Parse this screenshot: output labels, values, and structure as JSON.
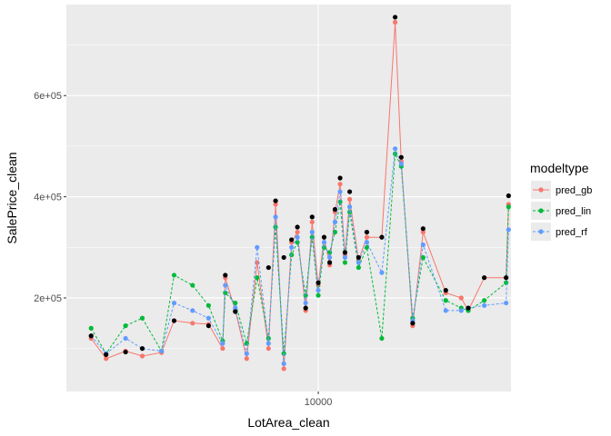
{
  "chart_data": {
    "type": "line",
    "title": "",
    "xlabel": "LotArea_clean",
    "ylabel": "SalePrice_clean",
    "x_scale": "log10",
    "x_range": [
      1220,
      50000
    ],
    "y_range": [
      15000,
      780000
    ],
    "x_ticks": [
      {
        "value": 10000,
        "label": "10000"
      }
    ],
    "y_ticks": [
      {
        "value": 200000,
        "label": "2e+05"
      },
      {
        "value": 400000,
        "label": "4e+05"
      },
      {
        "value": 600000,
        "label": "6e+05"
      }
    ],
    "grid": true,
    "legend": {
      "title": "modeltype",
      "position": "right",
      "entries": [
        {
          "name": "pred_gb",
          "color": "#F8766D",
          "linestyle": "solid"
        },
        {
          "name": "pred_lin",
          "color": "#00BA38",
          "linestyle": "dashed"
        },
        {
          "name": "pred_rf",
          "color": "#619CFF",
          "linestyle": "dashed"
        }
      ]
    },
    "actual": {
      "color": "#000000",
      "x": [
        1500,
        1700,
        2000,
        2300,
        3000,
        4000,
        4600,
        5000,
        6600,
        7000,
        7500,
        8000,
        8400,
        9000,
        9500,
        10000,
        10500,
        11000,
        11500,
        12000,
        12500,
        13000,
        14000,
        15000,
        17000,
        19000,
        20000,
        22000,
        24000,
        29000,
        35000,
        40000,
        48000,
        49000
      ],
      "y": [
        125000,
        88000,
        93000,
        100000,
        155000,
        145000,
        245000,
        173000,
        260000,
        392000,
        280000,
        315000,
        340000,
        180000,
        360000,
        230000,
        320000,
        270000,
        375000,
        437000,
        290000,
        410000,
        280000,
        330000,
        320000,
        755000,
        478000,
        150000,
        337000,
        215000,
        180000,
        240000,
        240000,
        402000
      ]
    },
    "series": [
      {
        "name": "pred_gb",
        "x": [
          1500,
          1700,
          2000,
          2300,
          2700,
          3000,
          3500,
          4000,
          4500,
          4600,
          5000,
          5500,
          6000,
          6600,
          7000,
          7500,
          8000,
          8400,
          9000,
          9500,
          10000,
          10500,
          11000,
          11500,
          12000,
          12500,
          13000,
          14000,
          15000,
          17000,
          19000,
          20000,
          22000,
          24000,
          29000,
          33000,
          35000,
          40000,
          48000,
          49000
        ],
        "y": [
          120000,
          80000,
          95000,
          85000,
          92000,
          155000,
          150000,
          148000,
          100000,
          240000,
          175000,
          80000,
          270000,
          100000,
          385000,
          60000,
          310000,
          330000,
          175000,
          350000,
          225000,
          320000,
          265000,
          370000,
          425000,
          285000,
          395000,
          275000,
          320000,
          320000,
          745000,
          470000,
          145000,
          330000,
          210000,
          200000,
          175000,
          240000,
          240000,
          385000
        ]
      },
      {
        "name": "pred_lin",
        "x": [
          1500,
          1700,
          2000,
          2300,
          2700,
          3000,
          3500,
          4000,
          4500,
          4600,
          5000,
          5500,
          6000,
          6600,
          7000,
          7500,
          8000,
          8400,
          9000,
          9500,
          10000,
          10500,
          11000,
          11500,
          12000,
          12500,
          13000,
          14000,
          15000,
          17000,
          19000,
          20000,
          22000,
          24000,
          29000,
          33000,
          35000,
          40000,
          48000,
          49000
        ],
        "y": [
          140000,
          90000,
          145000,
          160000,
          95000,
          245000,
          225000,
          185000,
          115000,
          210000,
          190000,
          110000,
          240000,
          120000,
          340000,
          90000,
          285000,
          310000,
          205000,
          320000,
          205000,
          300000,
          290000,
          330000,
          390000,
          270000,
          370000,
          260000,
          300000,
          120000,
          485000,
          460000,
          160000,
          280000,
          195000,
          180000,
          175000,
          195000,
          230000,
          380000
        ]
      },
      {
        "name": "pred_rf",
        "x": [
          1500,
          1700,
          2000,
          2300,
          2700,
          3000,
          3500,
          4000,
          4500,
          4600,
          5000,
          5500,
          6000,
          6600,
          7000,
          7500,
          8000,
          8400,
          9000,
          9500,
          10000,
          10500,
          11000,
          11500,
          12000,
          12500,
          13000,
          14000,
          15000,
          17000,
          19000,
          20000,
          22000,
          24000,
          29000,
          33000,
          35000,
          40000,
          48000,
          49000
        ],
        "y": [
          125000,
          90000,
          120000,
          100000,
          95000,
          190000,
          175000,
          160000,
          110000,
          225000,
          180000,
          90000,
          300000,
          110000,
          360000,
          70000,
          300000,
          320000,
          190000,
          330000,
          215000,
          310000,
          280000,
          350000,
          410000,
          280000,
          380000,
          270000,
          310000,
          250000,
          495000,
          465000,
          155000,
          305000,
          175000,
          175000,
          180000,
          185000,
          190000,
          335000
        ]
      }
    ]
  }
}
